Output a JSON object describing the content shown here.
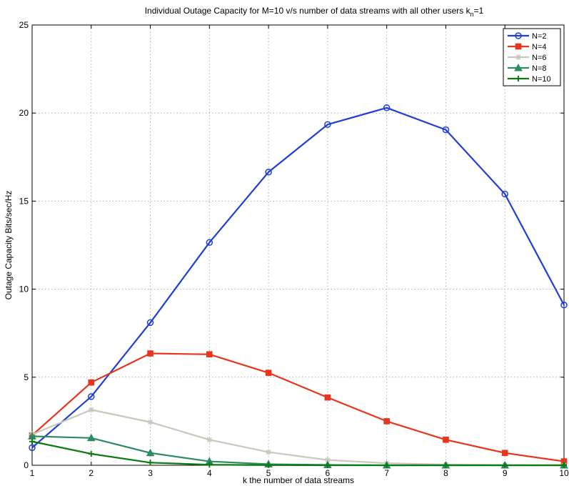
{
  "chart_data": {
    "type": "line",
    "title_main": "Individual Outage Capacity for M=10 v/s number of data streams with all other users k",
    "title_sub": "n",
    "title_tail": "=1",
    "xlabel": "k the number of data streams",
    "ylabel": "Outage Capacity Bits/sec/Hz",
    "xlim": [
      1,
      10
    ],
    "ylim": [
      0,
      25
    ],
    "xticks": [
      1,
      2,
      3,
      4,
      5,
      6,
      7,
      8,
      9,
      10
    ],
    "yticks": [
      0,
      5,
      10,
      15,
      20,
      25
    ],
    "grid": true,
    "legend_position": "top-right",
    "x": [
      1,
      2,
      3,
      4,
      5,
      6,
      7,
      8,
      9,
      10
    ],
    "series": [
      {
        "name": "N=2",
        "color": "#1f3fd8",
        "marker": "circle",
        "values": [
          1.0,
          3.9,
          8.1,
          12.65,
          16.65,
          19.35,
          20.3,
          19.05,
          15.4,
          9.1
        ]
      },
      {
        "name": "N=4",
        "color": "#e8351c",
        "marker": "square",
        "values": [
          1.7,
          4.7,
          6.35,
          6.3,
          5.25,
          3.85,
          2.5,
          1.45,
          0.7,
          0.22
        ]
      },
      {
        "name": "N=6",
        "color": "#c8c8bc",
        "marker": "star",
        "values": [
          1.75,
          3.15,
          2.45,
          1.45,
          0.75,
          0.3,
          0.12,
          0.04,
          0.01,
          0.0
        ]
      },
      {
        "name": "N=8",
        "color": "#2e8b62",
        "marker": "triangle",
        "values": [
          1.65,
          1.55,
          0.7,
          0.22,
          0.06,
          0.02,
          0.0,
          0.0,
          0.0,
          0.0
        ]
      },
      {
        "name": "N=10",
        "color": "#0b7a10",
        "marker": "plus",
        "values": [
          1.35,
          0.65,
          0.15,
          0.03,
          0.01,
          0.0,
          0.0,
          0.0,
          0.0,
          0.0
        ]
      }
    ]
  }
}
